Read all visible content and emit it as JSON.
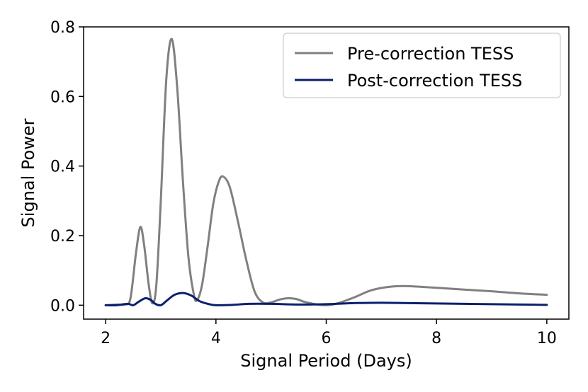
{
  "chart_data": {
    "type": "line",
    "xlabel": "Signal Period (Days)",
    "ylabel": "Signal Power",
    "xlim": [
      1.6,
      10.4
    ],
    "ylim": [
      -0.04,
      0.8
    ],
    "xticks": [
      2,
      4,
      6,
      8,
      10
    ],
    "xtick_labels": [
      "2",
      "4",
      "6",
      "8",
      "10"
    ],
    "yticks": [
      0.0,
      0.2,
      0.4,
      0.6,
      0.8
    ],
    "ytick_labels": [
      "0.0",
      "0.2",
      "0.4",
      "0.6",
      "0.8"
    ],
    "grid": false,
    "legend_position": "top-right",
    "series": [
      {
        "name": "Pre-correction TESS",
        "color": "#808080",
        "points": [
          [
            2.0,
            0.0
          ],
          [
            2.2,
            0.002
          ],
          [
            2.35,
            0.002
          ],
          [
            2.45,
            0.02
          ],
          [
            2.55,
            0.15
          ],
          [
            2.63,
            0.225
          ],
          [
            2.7,
            0.17
          ],
          [
            2.78,
            0.06
          ],
          [
            2.85,
            0.005
          ],
          [
            2.92,
            0.06
          ],
          [
            3.0,
            0.3
          ],
          [
            3.1,
            0.65
          ],
          [
            3.2,
            0.765
          ],
          [
            3.3,
            0.62
          ],
          [
            3.4,
            0.36
          ],
          [
            3.5,
            0.14
          ],
          [
            3.6,
            0.03
          ],
          [
            3.66,
            0.015
          ],
          [
            3.75,
            0.06
          ],
          [
            3.85,
            0.17
          ],
          [
            3.95,
            0.29
          ],
          [
            4.05,
            0.355
          ],
          [
            4.13,
            0.37
          ],
          [
            4.25,
            0.34
          ],
          [
            4.4,
            0.24
          ],
          [
            4.55,
            0.13
          ],
          [
            4.7,
            0.04
          ],
          [
            4.85,
            0.008
          ],
          [
            5.0,
            0.008
          ],
          [
            5.15,
            0.016
          ],
          [
            5.3,
            0.02
          ],
          [
            5.45,
            0.018
          ],
          [
            5.6,
            0.01
          ],
          [
            5.8,
            0.003
          ],
          [
            6.0,
            0.0
          ],
          [
            6.2,
            0.005
          ],
          [
            6.5,
            0.022
          ],
          [
            6.8,
            0.042
          ],
          [
            7.1,
            0.052
          ],
          [
            7.4,
            0.055
          ],
          [
            7.8,
            0.052
          ],
          [
            8.2,
            0.048
          ],
          [
            8.6,
            0.044
          ],
          [
            9.0,
            0.04
          ],
          [
            9.5,
            0.034
          ],
          [
            10.0,
            0.03
          ]
        ]
      },
      {
        "name": "Post-correction TESS",
        "color": "#0a1f6e",
        "points": [
          [
            2.0,
            0.0
          ],
          [
            2.2,
            0.0
          ],
          [
            2.4,
            0.004
          ],
          [
            2.5,
            0.0
          ],
          [
            2.6,
            0.01
          ],
          [
            2.72,
            0.02
          ],
          [
            2.82,
            0.015
          ],
          [
            2.9,
            0.004
          ],
          [
            3.0,
            0.0
          ],
          [
            3.1,
            0.012
          ],
          [
            3.25,
            0.03
          ],
          [
            3.4,
            0.035
          ],
          [
            3.55,
            0.028
          ],
          [
            3.7,
            0.012
          ],
          [
            3.85,
            0.004
          ],
          [
            4.0,
            0.0
          ],
          [
            4.3,
            0.001
          ],
          [
            4.6,
            0.004
          ],
          [
            5.0,
            0.004
          ],
          [
            5.5,
            0.002
          ],
          [
            6.0,
            0.003
          ],
          [
            6.5,
            0.006
          ],
          [
            7.0,
            0.007
          ],
          [
            7.5,
            0.006
          ],
          [
            8.0,
            0.005
          ],
          [
            8.5,
            0.004
          ],
          [
            9.0,
            0.003
          ],
          [
            9.5,
            0.002
          ],
          [
            10.0,
            0.001
          ]
        ]
      }
    ]
  }
}
